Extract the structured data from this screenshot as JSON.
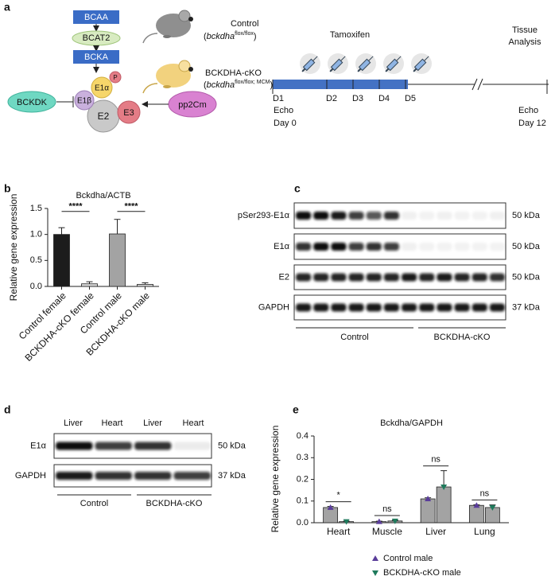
{
  "panels": [
    "a",
    "b",
    "c",
    "d",
    "e"
  ],
  "diagram": {
    "bcaa": "BCAA",
    "bcat2": "BCAT2",
    "bcka": "BCKA",
    "p": "P",
    "e1a": "E1α",
    "e1b": "E1β",
    "e2": "E2",
    "e3": "E3",
    "bckdk": "BCKDK",
    "pp2cm": "pp2Cm",
    "control": {
      "name": "Control",
      "prefix": "(",
      "gene": "bckdha",
      "sup": "flox/flox",
      "suffix": ")"
    },
    "cko": {
      "name": "BCKDHA-cKO",
      "prefix": "(",
      "gene": "bckdha",
      "sup": "flox/flox; MCM",
      "suffix": ")"
    }
  },
  "timeline": {
    "tamoxifen": "Tamoxifen",
    "tissue_analysis": [
      "Tissue",
      "Analysis"
    ],
    "days": [
      "D1",
      "D2",
      "D3",
      "D4",
      "D5"
    ],
    "start": {
      "echo": "Echo",
      "day": "Day 0"
    },
    "end": {
      "echo": "Echo",
      "day": "Day 12"
    }
  },
  "chart_data": [
    {
      "type": "bar",
      "title": "Bckdha/ACTB",
      "y_label": "Relative gene expression",
      "categories": [
        "Control female",
        "BCKDHA-cKO female",
        "Control male",
        "BCKDHA-cKO male"
      ],
      "values": [
        1.0,
        0.05,
        1.01,
        0.04
      ],
      "errors": [
        0.13,
        0.04,
        0.28,
        0.03
      ],
      "colors": [
        "#1c1c1c",
        "#d6d6d6",
        "#a3a3a3",
        "#d6d6d6"
      ],
      "ylim": [
        0,
        1.5
      ],
      "yticks": [
        {
          "value": 0,
          "label": "0.0"
        },
        0.5,
        {
          "value": 1,
          "label": "1.0"
        },
        1.5
      ],
      "annotations": [
        "****",
        "****"
      ]
    },
    {
      "type": "grouped_bar",
      "title": "Bckdha/GAPDH",
      "y_label": "Relative gene expression",
      "categories": [
        "Heart",
        "Muscle",
        "Liver",
        "Lung"
      ],
      "series": [
        {
          "name": "Control male",
          "color": "#5a3d9a",
          "values": [
            0.07,
            0.005,
            0.11,
            0.08
          ],
          "errors": [
            0.005,
            0.002,
            0.005,
            0.003
          ]
        },
        {
          "name": "BCKDHA-cKO male",
          "color": "#1f7a5c",
          "values": [
            0.005,
            0.008,
            0.165,
            0.07
          ],
          "errors": [
            0.002,
            0.003,
            0.075,
            0.012
          ]
        }
      ],
      "bar_color": "#a3a3a3",
      "ylim": [
        0,
        0.4
      ],
      "yticks": [
        {
          "value": 0,
          "label": "0.0"
        },
        0.1,
        0.2,
        0.3,
        0.4
      ],
      "annotations": [
        "*",
        "ns",
        "ns",
        "ns"
      ]
    }
  ],
  "blot_c": {
    "rows": [
      "pSer293-E1α",
      "E1α",
      "E2",
      "GAPDH"
    ],
    "sizes": [
      "50 kDa",
      "50 kDa",
      "50 kDa",
      "37 kDa"
    ],
    "groups": [
      "Control",
      "BCKDHA-cKO"
    ]
  },
  "blot_d": {
    "lanes": [
      "Liver",
      "Heart",
      "Liver",
      "Heart"
    ],
    "rows": [
      "E1α",
      "GAPDH"
    ],
    "sizes": [
      "50 kDa",
      "37 kDa"
    ],
    "groups": [
      "Control",
      "BCKDHA-cKO"
    ]
  }
}
